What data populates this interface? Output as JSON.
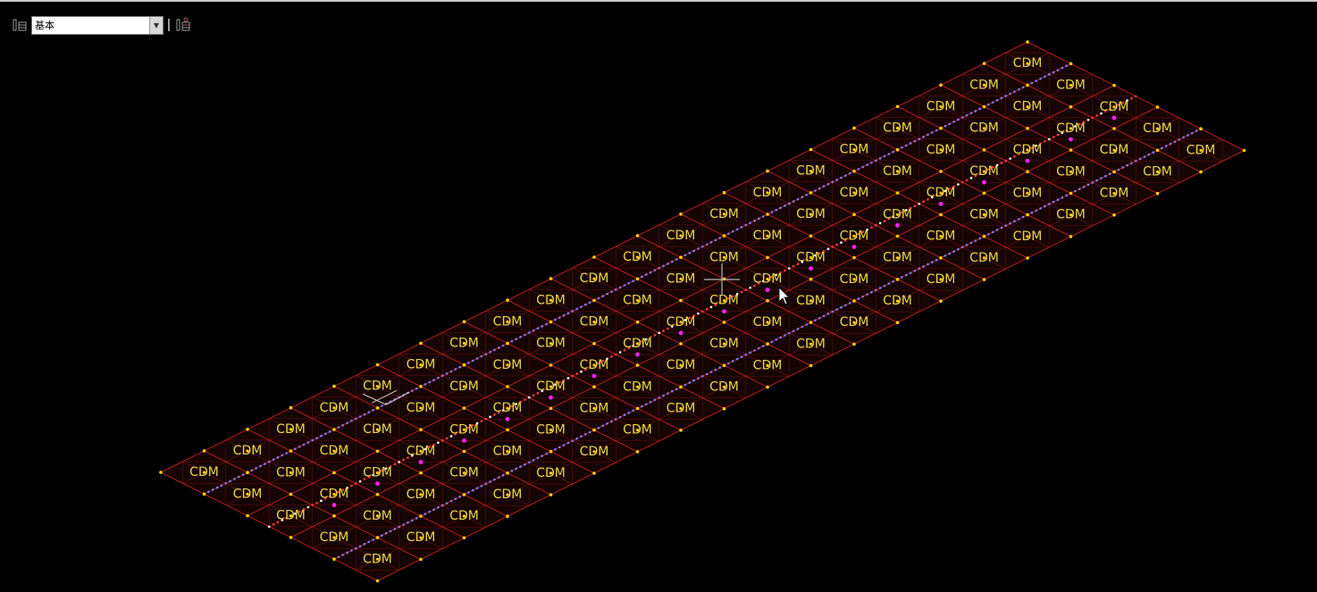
{
  "toolbar": {
    "layer_combo": {
      "value": "基本",
      "dropdown_icon": "chevron-down-icon"
    },
    "icons": [
      "layer-icon",
      "layer-settings-icon"
    ]
  },
  "model": {
    "element_label": "CDM",
    "colors": {
      "background": "#000000",
      "mesh_lines": "#c0201e",
      "node_points": "#ffd400",
      "labels": "#e6d84a",
      "blue_load_lines": "#7c7cff",
      "red_center_line": "#ff3a3a",
      "magenta_points": "#ff20ff"
    }
  },
  "cursors": [
    "crosshair-cursor",
    "arrow-cursor"
  ]
}
